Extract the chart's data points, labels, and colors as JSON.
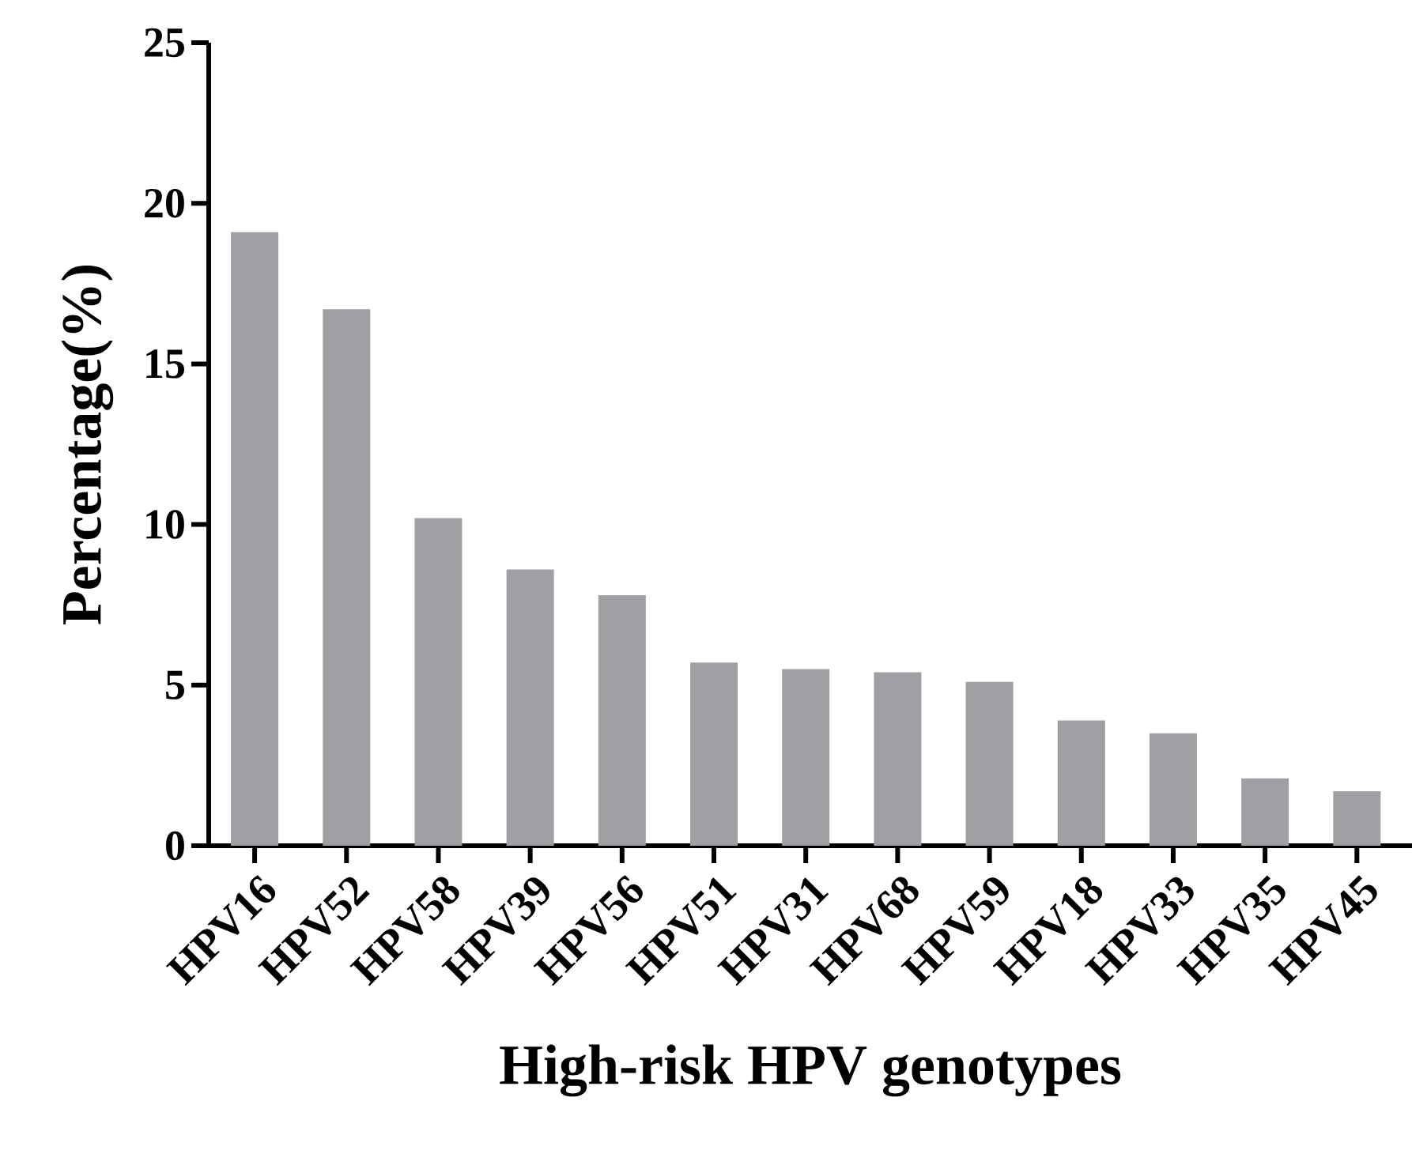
{
  "chart_data": {
    "type": "bar",
    "xlabel": "High-risk HPV genotypes",
    "ylabel": "Percentage(%)",
    "categories": [
      "HPV16",
      "HPV52",
      "HPV58",
      "HPV39",
      "HPV56",
      "HPV51",
      "HPV31",
      "HPV68",
      "HPV59",
      "HPV18",
      "HPV33",
      "HPV35",
      "HPV45"
    ],
    "values": [
      19.1,
      16.7,
      10.2,
      8.6,
      7.8,
      5.7,
      5.5,
      5.4,
      5.1,
      3.9,
      3.5,
      2.1,
      1.7
    ],
    "color": "#a0a0a4",
    "ylim": [
      0,
      25
    ],
    "yticks": [
      0,
      5,
      10,
      15,
      20,
      25
    ],
    "grid": false
  }
}
